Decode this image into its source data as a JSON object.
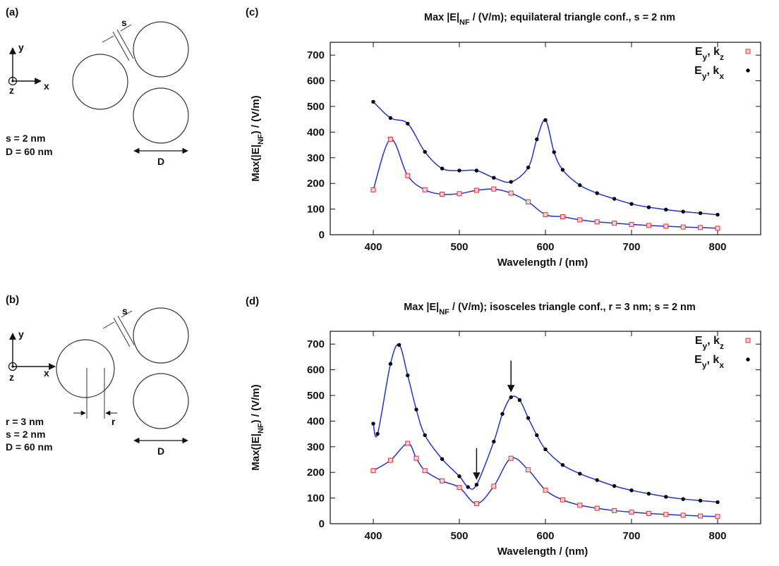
{
  "panels": {
    "a": {
      "letter": "(a)",
      "axis_y": "y",
      "axis_x": "x",
      "axis_z": "z",
      "gap_label": "s",
      "param1": "s = 2 nm",
      "param2": "D = 60 nm",
      "dim_label": "D"
    },
    "b": {
      "letter": "(b)",
      "axis_y": "y",
      "axis_x": "x",
      "axis_z": "z",
      "gap_label": "s",
      "r_label": "r",
      "param1": "r = 3 nm",
      "param2": "s = 2 nm",
      "param3": "D = 60 nm",
      "dim_label": "D"
    }
  },
  "chart_data": [
    {
      "panel_letter": "(c)",
      "type": "line",
      "title": "Max |E|NF / (V/m); equilateral triangle conf., s = 2 nm",
      "title_parts": {
        "pre": "Max |E|",
        "sub": "NF",
        "post": " / (V/m); equilateral triangle conf., s = 2 nm"
      },
      "xlabel": "Wavelength / (nm)",
      "ylabel": "Max(|E|NF) / (V/m)",
      "ylabel_parts": {
        "pre": "Max(|E|",
        "sub": "NF",
        "post": ") / (V/m)"
      },
      "xlim": [
        350,
        850
      ],
      "ylim": [
        0,
        750
      ],
      "xticks": [
        400,
        500,
        600,
        700,
        800
      ],
      "yticks": [
        0,
        100,
        200,
        300,
        400,
        500,
        600,
        700
      ],
      "legend_position": "top-right",
      "curve_color": "#2233cc",
      "series": [
        {
          "name": "Ey, kz",
          "name_parts": {
            "base": "E",
            "sub1": "y",
            "mid": ", k",
            "sub2": "z"
          },
          "marker": "square",
          "color": "#e0303a",
          "x": [
            400,
            420,
            440,
            460,
            480,
            500,
            520,
            540,
            560,
            580,
            600,
            620,
            640,
            660,
            680,
            700,
            720,
            740,
            760,
            780,
            800
          ],
          "y": [
            175,
            372,
            230,
            175,
            158,
            160,
            173,
            178,
            162,
            128,
            78,
            70,
            58,
            50,
            45,
            40,
            36,
            33,
            30,
            28,
            25
          ]
        },
        {
          "name": "Ey, kx",
          "name_parts": {
            "base": "E",
            "sub1": "y",
            "mid": ", k",
            "sub2": "x"
          },
          "marker": "dot",
          "color": "#000000",
          "x": [
            400,
            420,
            440,
            460,
            480,
            500,
            520,
            540,
            560,
            580,
            590,
            600,
            610,
            620,
            640,
            660,
            680,
            700,
            720,
            740,
            760,
            780,
            800
          ],
          "y": [
            518,
            455,
            433,
            323,
            258,
            250,
            250,
            222,
            206,
            262,
            372,
            447,
            322,
            253,
            193,
            162,
            140,
            120,
            107,
            98,
            90,
            84,
            78
          ]
        }
      ]
    },
    {
      "panel_letter": "(d)",
      "type": "line",
      "title": "Max |E|NF / (V/m); isosceles triangle conf., r = 3 nm; s = 2 nm",
      "title_parts": {
        "pre": "Max |E|",
        "sub": "NF",
        "post": " / (V/m); isosceles triangle conf., r = 3 nm; s = 2 nm"
      },
      "xlabel": "Wavelength / (nm)",
      "ylabel": "Max(|E|NF) / (V/m)",
      "ylabel_parts": {
        "pre": "Max(|E|",
        "sub": "NF",
        "post": ") / (V/m)"
      },
      "xlim": [
        350,
        850
      ],
      "ylim": [
        0,
        750
      ],
      "xticks": [
        400,
        500,
        600,
        700,
        800
      ],
      "yticks": [
        0,
        100,
        200,
        300,
        400,
        500,
        600,
        700
      ],
      "legend_position": "top-right",
      "curve_color": "#2233cc",
      "annotation_arrows_at": [
        520,
        560
      ],
      "series": [
        {
          "name": "Ey, kz",
          "name_parts": {
            "base": "E",
            "sub1": "y",
            "mid": ", k",
            "sub2": "z"
          },
          "marker": "square",
          "color": "#e0303a",
          "x": [
            400,
            420,
            440,
            450,
            460,
            480,
            500,
            520,
            540,
            560,
            580,
            600,
            620,
            640,
            660,
            680,
            700,
            720,
            740,
            760,
            780,
            800
          ],
          "y": [
            207,
            247,
            313,
            255,
            207,
            167,
            141,
            78,
            146,
            255,
            210,
            131,
            93,
            72,
            60,
            51,
            45,
            40,
            36,
            33,
            30,
            28
          ]
        },
        {
          "name": "Ey, kx",
          "name_parts": {
            "base": "E",
            "sub1": "y",
            "mid": ", k",
            "sub2": "x"
          },
          "marker": "dot",
          "color": "#000000",
          "x": [
            400,
            405,
            420,
            430,
            440,
            450,
            460,
            480,
            500,
            510,
            520,
            540,
            550,
            560,
            570,
            580,
            590,
            600,
            620,
            640,
            660,
            680,
            700,
            720,
            740,
            760,
            780,
            800
          ],
          "y": [
            390,
            350,
            623,
            697,
            578,
            445,
            345,
            252,
            185,
            143,
            152,
            320,
            428,
            493,
            482,
            412,
            345,
            290,
            229,
            195,
            170,
            147,
            130,
            117,
            105,
            96,
            90,
            84
          ]
        }
      ]
    }
  ]
}
